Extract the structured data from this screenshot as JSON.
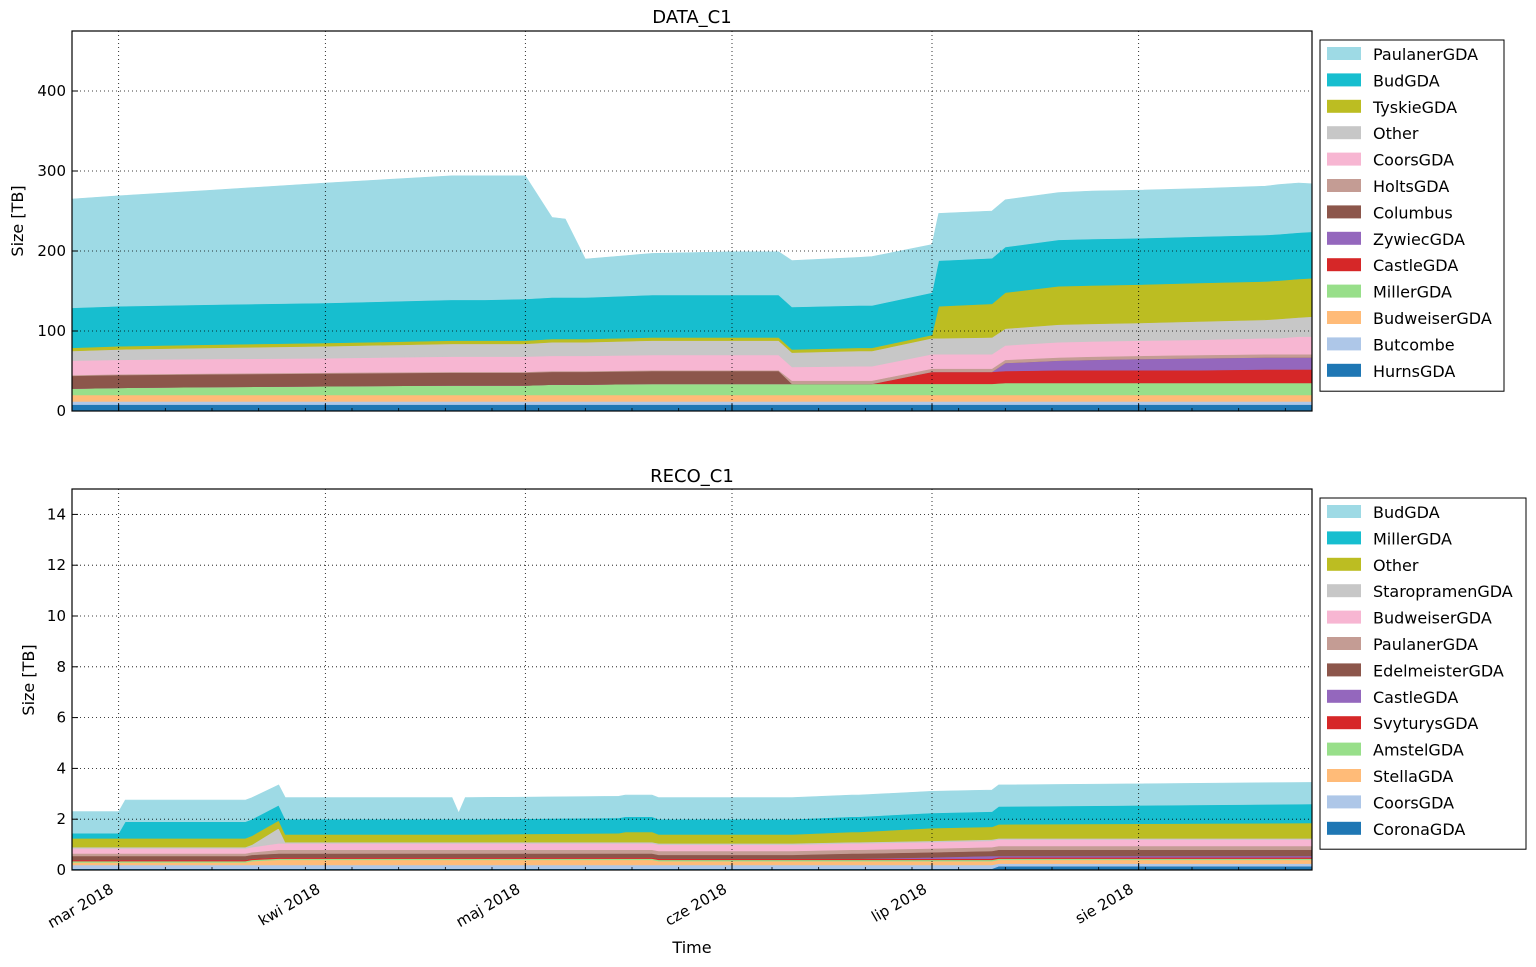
{
  "chart_data": [
    {
      "type": "area",
      "stacked": true,
      "title": "DATA_C1",
      "xlabel": "",
      "ylabel": "Size [TB]",
      "xlim": [
        "2018-02-22",
        "2018-08-27"
      ],
      "ylim": [
        0,
        475
      ],
      "yticks": [
        0,
        100,
        200,
        300,
        400
      ],
      "grid": true,
      "legend_position": "right",
      "x": [
        "2018-02-22",
        "2018-03-01",
        "2018-03-15",
        "2018-04-01",
        "2018-04-20",
        "2018-04-25",
        "2018-05-01",
        "2018-05-05",
        "2018-05-07",
        "2018-05-10",
        "2018-05-20",
        "2018-06-01",
        "2018-06-08",
        "2018-06-10",
        "2018-06-20",
        "2018-06-22",
        "2018-07-01",
        "2018-07-02",
        "2018-07-10",
        "2018-07-12",
        "2018-07-20",
        "2018-07-25",
        "2018-08-01",
        "2018-08-10",
        "2018-08-20",
        "2018-08-22",
        "2018-08-25",
        "2018-08-27"
      ],
      "series": [
        {
          "name": "HurnsGDA",
          "color": "#1f77b4",
          "values": [
            8,
            8,
            8,
            8,
            8,
            8,
            8,
            8,
            8,
            8,
            8,
            8,
            8,
            8,
            8,
            8,
            8,
            8,
            8,
            8,
            8,
            8,
            8,
            8,
            8,
            8,
            8,
            8
          ]
        },
        {
          "name": "Butcombe",
          "color": "#aec7e8",
          "values": [
            4,
            4,
            4,
            4,
            4,
            4,
            4,
            4,
            4,
            4,
            4,
            4,
            4,
            4,
            4,
            4,
            4,
            4,
            4,
            4,
            4,
            4,
            4,
            4,
            4,
            4,
            4,
            4
          ]
        },
        {
          "name": "BudweiserGDA",
          "color": "#ffbb78",
          "values": [
            8,
            8,
            8,
            8,
            8,
            8,
            8,
            8,
            8,
            8,
            8,
            8,
            8,
            8,
            8,
            8,
            8,
            8,
            8,
            8,
            8,
            8,
            8,
            8,
            8,
            8,
            8,
            8
          ]
        },
        {
          "name": "MillerGDA",
          "color": "#98df8a",
          "values": [
            8,
            9,
            10,
            11,
            12,
            12,
            12,
            13,
            13,
            13,
            14,
            14,
            14,
            14,
            14,
            14,
            14,
            14,
            14,
            15,
            15,
            15,
            15,
            15,
            15,
            15,
            15,
            15
          ]
        },
        {
          "name": "CastleGDA",
          "color": "#d62728",
          "values": [
            0,
            0,
            0,
            0,
            0,
            0,
            0,
            0,
            0,
            0,
            0,
            0,
            0,
            0,
            0,
            0,
            15,
            15,
            15,
            15,
            16,
            16,
            16,
            16,
            17,
            17,
            17,
            17
          ]
        },
        {
          "name": "ZywiecGDA",
          "color": "#9467bd",
          "values": [
            0,
            0,
            0,
            0,
            0,
            0,
            0,
            0,
            0,
            0,
            0,
            0,
            0,
            0,
            0,
            0,
            0,
            0,
            0,
            10,
            12,
            13,
            14,
            15,
            15,
            15,
            15,
            15
          ]
        },
        {
          "name": "Columbus",
          "color": "#8c564b",
          "values": [
            16,
            16,
            16,
            16,
            16,
            16,
            16,
            16,
            16,
            16,
            16,
            16,
            16,
            0,
            0,
            0,
            0,
            0,
            0,
            0,
            0,
            0,
            0,
            0,
            0,
            0,
            0,
            0
          ]
        },
        {
          "name": "HoltsGDA",
          "color": "#c49c94",
          "values": [
            1,
            1,
            1,
            1,
            1,
            1,
            1,
            1,
            1,
            1,
            1,
            1,
            1,
            4,
            4,
            4,
            4,
            4,
            4,
            4,
            4,
            4,
            4,
            4,
            4,
            4,
            4,
            4
          ]
        },
        {
          "name": "CoorsGDA",
          "color": "#f7b6d2",
          "values": [
            18,
            18,
            18,
            18,
            19,
            19,
            19,
            19,
            19,
            19,
            19,
            19,
            19,
            17,
            18,
            18,
            18,
            18,
            18,
            18,
            19,
            19,
            19,
            19,
            20,
            20,
            22,
            22
          ]
        },
        {
          "name": "Other",
          "color": "#c7c7c7",
          "values": [
            12,
            13,
            14,
            15,
            16,
            16,
            16,
            17,
            17,
            17,
            18,
            18,
            18,
            18,
            19,
            19,
            20,
            20,
            21,
            21,
            22,
            22,
            22,
            23,
            23,
            24,
            24,
            25
          ]
        },
        {
          "name": "TyskieGDA",
          "color": "#bcbd22",
          "values": [
            4,
            4,
            4,
            4,
            4,
            4,
            4,
            4,
            4,
            4,
            4,
            4,
            4,
            4,
            4,
            4,
            4,
            40,
            42,
            45,
            48,
            48,
            48,
            48,
            48,
            48,
            48,
            48
          ]
        },
        {
          "name": "BudGDA",
          "color": "#17becf",
          "values": [
            50,
            50,
            50,
            50,
            51,
            51,
            52,
            52,
            52,
            52,
            53,
            53,
            53,
            53,
            53,
            53,
            53,
            57,
            57,
            57,
            58,
            58,
            58,
            58,
            58,
            58,
            58,
            58
          ]
        },
        {
          "name": "PaulanerGDA",
          "color": "#9edae5",
          "values": [
            136,
            138,
            143,
            150,
            155,
            155,
            154,
            100,
            98,
            48,
            52,
            54,
            54,
            58,
            60,
            61,
            60,
            59,
            59,
            59,
            59,
            60,
            60,
            60,
            61,
            62,
            62,
            60
          ]
        }
      ]
    },
    {
      "type": "area",
      "stacked": true,
      "title": "RECO_C1",
      "xlabel": "Time",
      "ylabel": "Size [TB]",
      "xlim": [
        "2018-02-22",
        "2018-08-27"
      ],
      "ylim": [
        0,
        15
      ],
      "yticks": [
        0,
        2,
        4,
        6,
        8,
        10,
        12,
        14
      ],
      "xticks": [
        {
          "date": "2018-03-01",
          "label": "mar 2018"
        },
        {
          "date": "2018-04-01",
          "label": "kwi 2018"
        },
        {
          "date": "2018-05-01",
          "label": "maj 2018"
        },
        {
          "date": "2018-06-01",
          "label": "cze 2018"
        },
        {
          "date": "2018-07-01",
          "label": "lip 2018"
        },
        {
          "date": "2018-08-01",
          "label": "sie 2018"
        }
      ],
      "grid": true,
      "legend_position": "right",
      "x": [
        "2018-02-22",
        "2018-03-01",
        "2018-03-02",
        "2018-03-20",
        "2018-03-21",
        "2018-03-25",
        "2018-03-26",
        "2018-04-20",
        "2018-04-21",
        "2018-04-22",
        "2018-05-15",
        "2018-05-16",
        "2018-05-20",
        "2018-05-21",
        "2018-06-10",
        "2018-06-19",
        "2018-06-20",
        "2018-07-01",
        "2018-07-10",
        "2018-07-11",
        "2018-08-27"
      ],
      "series": [
        {
          "name": "CoronaGDA",
          "color": "#1f77b4",
          "values": [
            0.05,
            0.05,
            0.05,
            0.05,
            0.05,
            0.05,
            0.05,
            0.05,
            0.05,
            0.05,
            0.05,
            0.05,
            0.05,
            0.05,
            0.05,
            0.05,
            0.05,
            0.05,
            0.05,
            0.15,
            0.15
          ]
        },
        {
          "name": "CoorsGDA",
          "color": "#aec7e8",
          "values": [
            0.15,
            0.15,
            0.15,
            0.15,
            0.15,
            0.15,
            0.15,
            0.15,
            0.15,
            0.15,
            0.15,
            0.15,
            0.15,
            0.15,
            0.15,
            0.15,
            0.15,
            0.15,
            0.15,
            0.1,
            0.1
          ]
        },
        {
          "name": "StellaGDA",
          "color": "#ffbb78",
          "values": [
            0.1,
            0.1,
            0.1,
            0.1,
            0.15,
            0.2,
            0.2,
            0.2,
            0.2,
            0.2,
            0.2,
            0.2,
            0.2,
            0.15,
            0.15,
            0.15,
            0.15,
            0.15,
            0.15,
            0.15,
            0.15
          ]
        },
        {
          "name": "AmstelGDA",
          "color": "#98df8a",
          "values": [
            0.05,
            0.05,
            0.05,
            0.05,
            0.05,
            0.05,
            0.05,
            0.05,
            0.05,
            0.05,
            0.05,
            0.05,
            0.05,
            0.05,
            0.05,
            0.05,
            0.05,
            0.05,
            0.05,
            0.05,
            0.05
          ]
        },
        {
          "name": "SvyturysGDA",
          "color": "#d62728",
          "values": [
            0.05,
            0.05,
            0.05,
            0.05,
            0.05,
            0.05,
            0.05,
            0.05,
            0.05,
            0.05,
            0.05,
            0.05,
            0.05,
            0.05,
            0.05,
            0.05,
            0.05,
            0.05,
            0.05,
            0.05,
            0.05
          ]
        },
        {
          "name": "CastleGDA",
          "color": "#9467bd",
          "values": [
            0,
            0,
            0,
            0,
            0,
            0,
            0,
            0,
            0,
            0,
            0,
            0,
            0,
            0,
            0,
            0,
            0,
            0.05,
            0.1,
            0.05,
            0.05
          ]
        },
        {
          "name": "EdelmeisterGDA",
          "color": "#8c564b",
          "values": [
            0.15,
            0.15,
            0.15,
            0.15,
            0.15,
            0.15,
            0.15,
            0.15,
            0.15,
            0.15,
            0.15,
            0.15,
            0.15,
            0.15,
            0.15,
            0.2,
            0.2,
            0.2,
            0.2,
            0.25,
            0.25
          ]
        },
        {
          "name": "PaulanerGDA",
          "color": "#c49c94",
          "values": [
            0.1,
            0.1,
            0.1,
            0.1,
            0.1,
            0.15,
            0.15,
            0.15,
            0.15,
            0.15,
            0.15,
            0.15,
            0.15,
            0.15,
            0.15,
            0.15,
            0.15,
            0.15,
            0.15,
            0.15,
            0.15
          ]
        },
        {
          "name": "BudweiserGDA",
          "color": "#f7b6d2",
          "values": [
            0.2,
            0.2,
            0.2,
            0.2,
            0.2,
            0.25,
            0.25,
            0.25,
            0.25,
            0.25,
            0.25,
            0.25,
            0.25,
            0.25,
            0.25,
            0.25,
            0.25,
            0.25,
            0.25,
            0.25,
            0.25
          ]
        },
        {
          "name": "StaropramenGDA",
          "color": "#c7c7c7",
          "values": [
            0.05,
            0.05,
            0.05,
            0.05,
            0.1,
            0.6,
            0.05,
            0.05,
            0.05,
            0.05,
            0.05,
            0.05,
            0.05,
            0.05,
            0.05,
            0.05,
            0.05,
            0.05,
            0.05,
            0.05,
            0.05
          ]
        },
        {
          "name": "Other",
          "color": "#bcbd22",
          "values": [
            0.35,
            0.35,
            0.35,
            0.35,
            0.35,
            0.3,
            0.3,
            0.3,
            0.3,
            0.3,
            0.35,
            0.4,
            0.4,
            0.35,
            0.35,
            0.4,
            0.4,
            0.5,
            0.5,
            0.55,
            0.6
          ]
        },
        {
          "name": "MillerGDA",
          "color": "#17becf",
          "values": [
            0.2,
            0.2,
            0.65,
            0.65,
            0.65,
            0.6,
            0.6,
            0.6,
            0.6,
            0.6,
            0.6,
            0.6,
            0.6,
            0.6,
            0.6,
            0.6,
            0.6,
            0.6,
            0.6,
            0.7,
            0.75
          ]
        },
        {
          "name": "BudGDA",
          "color": "#9edae5",
          "values": [
            0.85,
            0.85,
            0.85,
            0.85,
            0.85,
            0.8,
            0.85,
            0.85,
            0.25,
            0.85,
            0.85,
            0.85,
            0.85,
            0.85,
            0.85,
            0.85,
            0.85,
            0.85,
            0.85,
            0.85,
            0.85
          ]
        }
      ]
    }
  ]
}
